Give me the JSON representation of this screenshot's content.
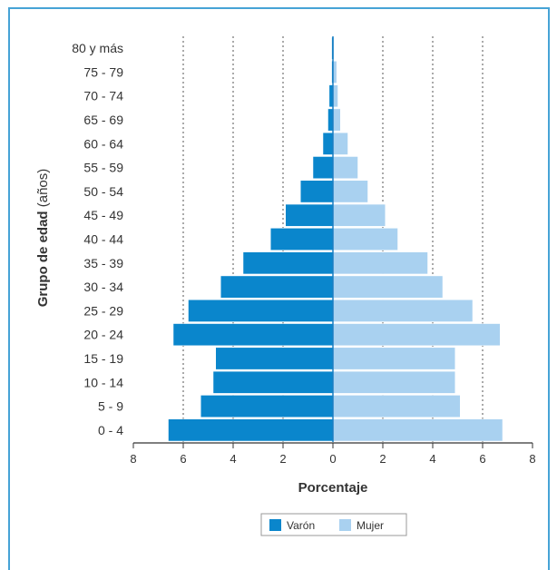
{
  "chart_data": {
    "type": "bar",
    "orientation": "horizontal-population-pyramid",
    "categories": [
      "0 - 4",
      "5 - 9",
      "10 - 14",
      "15 - 19",
      "20 - 24",
      "25 - 29",
      "30 - 34",
      "35 - 39",
      "40 - 44",
      "45 - 49",
      "50 - 54",
      "55 - 59",
      "60 - 64",
      "65 - 69",
      "70 - 74",
      "75 - 79",
      "80 y más"
    ],
    "series": [
      {
        "name": "Varón",
        "color": "#0a86cc",
        "side": "left",
        "values": [
          6.6,
          5.3,
          4.8,
          4.7,
          6.4,
          5.8,
          4.5,
          3.6,
          2.5,
          1.9,
          1.3,
          0.8,
          0.4,
          0.2,
          0.15,
          0.05,
          0.05
        ]
      },
      {
        "name": "Mujer",
        "color": "#a9d1f0",
        "side": "right",
        "values": [
          6.8,
          5.1,
          4.9,
          4.9,
          6.7,
          5.6,
          4.4,
          3.8,
          2.6,
          2.1,
          1.4,
          1.0,
          0.6,
          0.3,
          0.2,
          0.15,
          0.05
        ]
      }
    ],
    "xlabel": "Porcentaje",
    "ylabel": "Grupo de edad (años)",
    "xlim": [
      -8,
      8
    ],
    "xticks": [
      -8,
      -6,
      -4,
      -2,
      0,
      2,
      4,
      6,
      8
    ],
    "xtick_labels": [
      "8",
      "6",
      "4",
      "2",
      "0",
      "2",
      "4",
      "6",
      "8"
    ],
    "grid": "vertical dotted",
    "legend_position": "bottom-center"
  },
  "legend": {
    "male_label": "Varón",
    "female_label": "Mujer"
  },
  "colors": {
    "frame": "#46a3d6",
    "male": "#0a86cc",
    "female": "#a9d1f0"
  }
}
